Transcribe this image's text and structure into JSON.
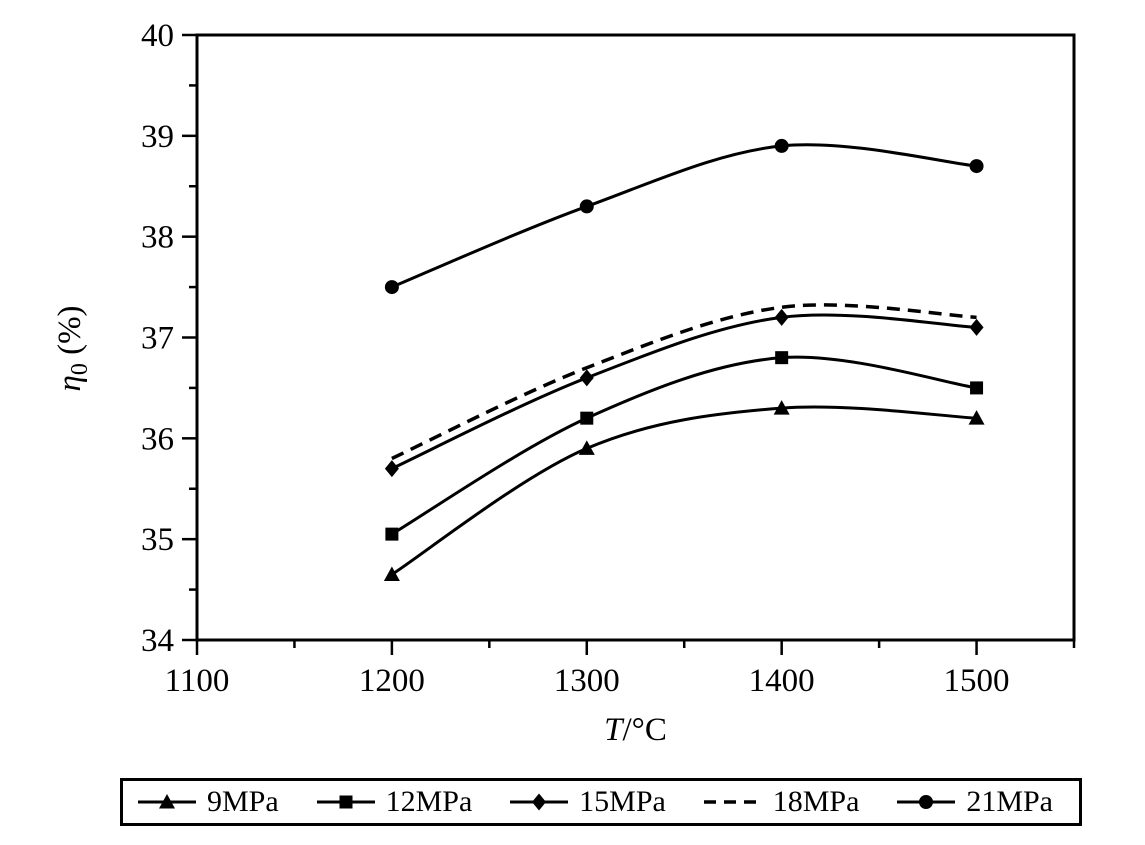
{
  "colors": {
    "ink": "#000000",
    "background": "#ffffff"
  },
  "chart_data": {
    "type": "line",
    "title": "",
    "xlabel": "T/°C",
    "xlabel_parts": {
      "italic": "T",
      "rest": "/°C"
    },
    "ylabel": "η0 (%)",
    "ylabel_parts": {
      "italic": "η",
      "sub": "0",
      "rest": " (%)"
    },
    "xlim": [
      1100,
      1550
    ],
    "ylim": [
      34,
      40
    ],
    "x_major_ticks": [
      1100,
      1200,
      1300,
      1400,
      1500
    ],
    "x_minor_ticks": [
      1150,
      1250,
      1350,
      1450,
      1550
    ],
    "y_major_ticks": [
      34,
      35,
      36,
      37,
      38,
      39,
      40
    ],
    "y_minor_ticks": [
      34.5,
      35.5,
      36.5,
      37.5,
      38.5,
      39.5
    ],
    "grid": false,
    "legend_position": "bottom",
    "x": [
      1200,
      1300,
      1400,
      1500
    ],
    "series": [
      {
        "name": "9MPa",
        "marker": "triangle",
        "line": "solid",
        "values": [
          34.65,
          35.9,
          36.3,
          36.2
        ]
      },
      {
        "name": "12MPa",
        "marker": "square",
        "line": "solid",
        "values": [
          35.05,
          36.2,
          36.8,
          36.5
        ]
      },
      {
        "name": "15MPa",
        "marker": "diamond",
        "line": "solid",
        "values": [
          35.7,
          36.6,
          37.2,
          37.1
        ]
      },
      {
        "name": "18MPa",
        "marker": "none",
        "line": "dashed",
        "values": [
          35.8,
          36.7,
          37.3,
          37.2
        ]
      },
      {
        "name": "21MPa",
        "marker": "circle",
        "line": "solid",
        "values": [
          37.5,
          38.3,
          38.9,
          38.7
        ]
      }
    ]
  }
}
